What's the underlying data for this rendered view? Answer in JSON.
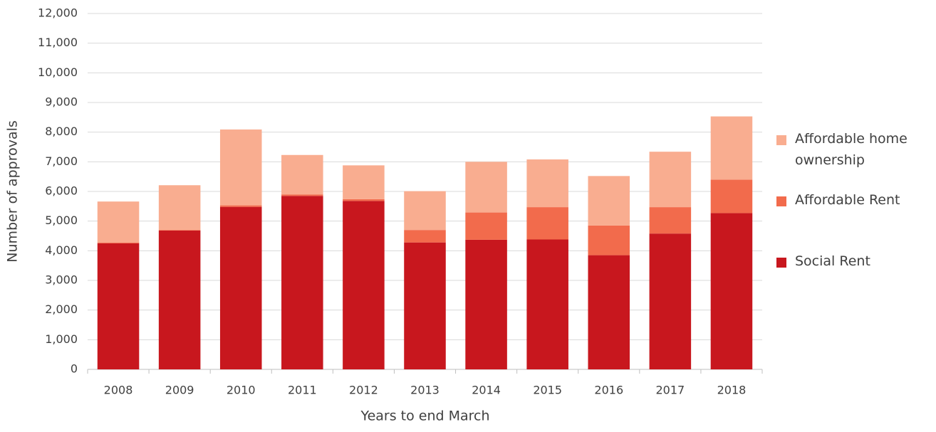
{
  "chart_data": {
    "type": "stacked_bar",
    "x_label": "Years to end March",
    "y_label": "Number of approvals",
    "categories": [
      "2008",
      "2009",
      "2010",
      "2011",
      "2012",
      "2013",
      "2014",
      "2015",
      "2016",
      "2017",
      "2018"
    ],
    "series": [
      {
        "name": "Social Rent",
        "color": "#c8171e",
        "values": [
          4250,
          4680,
          5480,
          5850,
          5680,
          4280,
          4370,
          4380,
          3850,
          4580,
          5270
        ]
      },
      {
        "name": "Affordable Rent",
        "color": "#f26b4c",
        "values": [
          30,
          20,
          50,
          50,
          60,
          420,
          920,
          1090,
          1000,
          890,
          1130
        ]
      },
      {
        "name": "Affordable home ownership",
        "color": "#f9ad90",
        "values": [
          1380,
          1510,
          2560,
          1330,
          1140,
          1310,
          1710,
          1610,
          1670,
          1870,
          2130
        ]
      }
    ],
    "ylim": [
      0,
      12000
    ],
    "yticks": [
      0,
      {
        "value": 1000,
        "label": "1,000"
      },
      {
        "value": 2000,
        "label": "2,000"
      },
      {
        "value": 3000,
        "label": "3,000"
      },
      {
        "value": 4000,
        "label": "4,000"
      },
      {
        "value": 5000,
        "label": "5,000"
      },
      {
        "value": 6000,
        "label": "6,000"
      },
      {
        "value": 7000,
        "label": "7,000"
      },
      {
        "value": 8000,
        "label": "8,000"
      },
      {
        "value": 9000,
        "label": "9,000"
      },
      {
        "value": 10000,
        "label": "10,000"
      },
      {
        "value": 11000,
        "label": "11,000"
      },
      {
        "value": 12000,
        "label": "12,000"
      }
    ],
    "grid": true,
    "legend": "right"
  }
}
